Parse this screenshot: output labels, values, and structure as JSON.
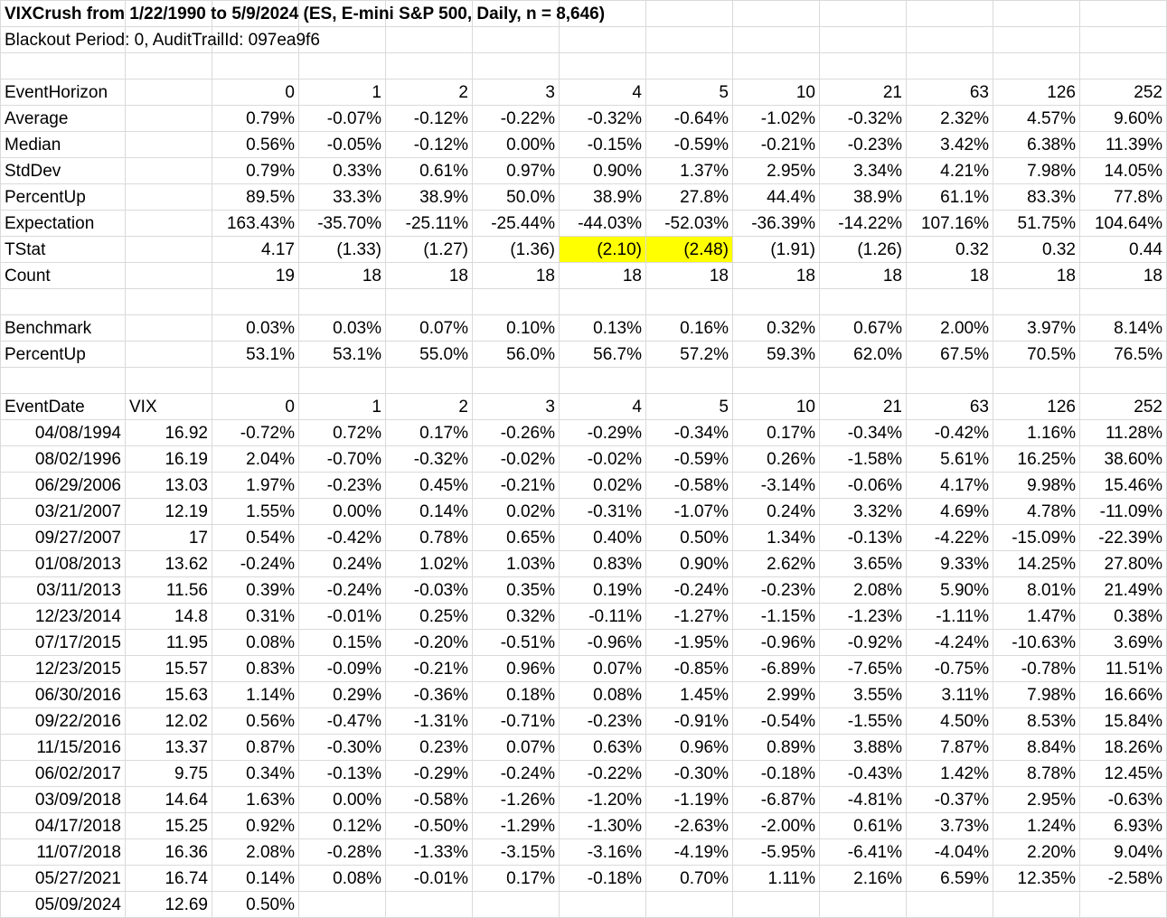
{
  "title": "VIXCrush from 1/22/1990 to 5/9/2024 (ES, E-mini S&P 500, Daily, n = 8,646)",
  "subtitle": "Blackout Period: 0, AuditTrailId: 097ea9f6",
  "colors": {
    "negative_text": "#ff0000",
    "highlight": "#ffff00",
    "gridline": "#dadada"
  },
  "horizons": [
    "0",
    "1",
    "2",
    "3",
    "4",
    "5",
    "10",
    "21",
    "63",
    "126",
    "252"
  ],
  "summary": {
    "header_label": "EventHorizon",
    "rows": [
      {
        "label": "Average",
        "values": [
          "0.79%",
          "-0.07%",
          "-0.12%",
          "-0.22%",
          "-0.32%",
          "-0.64%",
          "-1.02%",
          "-0.32%",
          "2.32%",
          "4.57%",
          "9.60%"
        ],
        "red": [
          false,
          true,
          true,
          true,
          true,
          true,
          true,
          true,
          false,
          false,
          false
        ]
      },
      {
        "label": "Median",
        "values": [
          "0.56%",
          "-0.05%",
          "-0.12%",
          "0.00%",
          "-0.15%",
          "-0.59%",
          "-0.21%",
          "-0.23%",
          "3.42%",
          "6.38%",
          "11.39%"
        ],
        "red": [
          false,
          true,
          true,
          true,
          true,
          true,
          true,
          true,
          false,
          false,
          false
        ]
      },
      {
        "label": "StdDev",
        "values": [
          "0.79%",
          "0.33%",
          "0.61%",
          "0.97%",
          "0.90%",
          "1.37%",
          "2.95%",
          "3.34%",
          "4.21%",
          "7.98%",
          "14.05%"
        ]
      },
      {
        "label": "PercentUp",
        "values": [
          "89.5%",
          "33.3%",
          "38.9%",
          "50.0%",
          "38.9%",
          "27.8%",
          "44.4%",
          "38.9%",
          "61.1%",
          "83.3%",
          "77.8%"
        ]
      },
      {
        "label": "Expectation",
        "values": [
          "163.43%",
          "-35.70%",
          "-25.11%",
          "-25.44%",
          "-44.03%",
          "-52.03%",
          "-36.39%",
          "-14.22%",
          "107.16%",
          "51.75%",
          "104.64%"
        ]
      },
      {
        "label": "TStat",
        "values": [
          "4.17",
          "(1.33)",
          "(1.27)",
          "(1.36)",
          "(2.10)",
          "(2.48)",
          "(1.91)",
          "(1.26)",
          "0.32",
          "0.32",
          "0.44"
        ],
        "highlight": [
          false,
          false,
          false,
          false,
          true,
          true,
          false,
          false,
          false,
          false,
          false
        ]
      },
      {
        "label": "Count",
        "values": [
          "19",
          "18",
          "18",
          "18",
          "18",
          "18",
          "18",
          "18",
          "18",
          "18",
          "18"
        ]
      }
    ]
  },
  "benchmark": {
    "rows": [
      {
        "label": "Benchmark",
        "values": [
          "0.03%",
          "0.03%",
          "0.07%",
          "0.10%",
          "0.13%",
          "0.16%",
          "0.32%",
          "0.67%",
          "2.00%",
          "3.97%",
          "8.14%"
        ]
      },
      {
        "label": "PercentUp",
        "values": [
          "53.1%",
          "53.1%",
          "55.0%",
          "56.0%",
          "56.7%",
          "57.2%",
          "59.3%",
          "62.0%",
          "67.5%",
          "70.5%",
          "76.5%"
        ]
      }
    ]
  },
  "events": {
    "header": {
      "date_label": "EventDate",
      "vix_label": "VIX"
    },
    "rows": [
      {
        "date": "04/08/1994",
        "vix": "16.92",
        "values": [
          "-0.72%",
          "0.72%",
          "0.17%",
          "-0.26%",
          "-0.29%",
          "-0.34%",
          "0.17%",
          "-0.34%",
          "-0.42%",
          "1.16%",
          "11.28%"
        ]
      },
      {
        "date": "08/02/1996",
        "vix": "16.19",
        "values": [
          "2.04%",
          "-0.70%",
          "-0.32%",
          "-0.02%",
          "-0.02%",
          "-0.59%",
          "0.26%",
          "-1.58%",
          "5.61%",
          "16.25%",
          "38.60%"
        ]
      },
      {
        "date": "06/29/2006",
        "vix": "13.03",
        "values": [
          "1.97%",
          "-0.23%",
          "0.45%",
          "-0.21%",
          "0.02%",
          "-0.58%",
          "-3.14%",
          "-0.06%",
          "4.17%",
          "9.98%",
          "15.46%"
        ]
      },
      {
        "date": "03/21/2007",
        "vix": "12.19",
        "values": [
          "1.55%",
          "0.00%",
          "0.14%",
          "0.02%",
          "-0.31%",
          "-1.07%",
          "0.24%",
          "3.32%",
          "4.69%",
          "4.78%",
          "-11.09%"
        ]
      },
      {
        "date": "09/27/2007",
        "vix": "17",
        "values": [
          "0.54%",
          "-0.42%",
          "0.78%",
          "0.65%",
          "0.40%",
          "0.50%",
          "1.34%",
          "-0.13%",
          "-4.22%",
          "-15.09%",
          "-22.39%"
        ]
      },
      {
        "date": "01/08/2013",
        "vix": "13.62",
        "values": [
          "-0.24%",
          "0.24%",
          "1.02%",
          "1.03%",
          "0.83%",
          "0.90%",
          "2.62%",
          "3.65%",
          "9.33%",
          "14.25%",
          "27.80%"
        ]
      },
      {
        "date": "03/11/2013",
        "vix": "11.56",
        "values": [
          "0.39%",
          "-0.24%",
          "-0.03%",
          "0.35%",
          "0.19%",
          "-0.24%",
          "-0.23%",
          "2.08%",
          "5.90%",
          "8.01%",
          "21.49%"
        ]
      },
      {
        "date": "12/23/2014",
        "vix": "14.8",
        "values": [
          "0.31%",
          "-0.01%",
          "0.25%",
          "0.32%",
          "-0.11%",
          "-1.27%",
          "-1.15%",
          "-1.23%",
          "-1.11%",
          "1.47%",
          "0.38%"
        ]
      },
      {
        "date": "07/17/2015",
        "vix": "11.95",
        "values": [
          "0.08%",
          "0.15%",
          "-0.20%",
          "-0.51%",
          "-0.96%",
          "-1.95%",
          "-0.96%",
          "-0.92%",
          "-4.24%",
          "-10.63%",
          "3.69%"
        ]
      },
      {
        "date": "12/23/2015",
        "vix": "15.57",
        "values": [
          "0.83%",
          "-0.09%",
          "-0.21%",
          "0.96%",
          "0.07%",
          "-0.85%",
          "-6.89%",
          "-7.65%",
          "-0.75%",
          "-0.78%",
          "11.51%"
        ]
      },
      {
        "date": "06/30/2016",
        "vix": "15.63",
        "values": [
          "1.14%",
          "0.29%",
          "-0.36%",
          "0.18%",
          "0.08%",
          "1.45%",
          "2.99%",
          "3.55%",
          "3.11%",
          "7.98%",
          "16.66%"
        ]
      },
      {
        "date": "09/22/2016",
        "vix": "12.02",
        "values": [
          "0.56%",
          "-0.47%",
          "-1.31%",
          "-0.71%",
          "-0.23%",
          "-0.91%",
          "-0.54%",
          "-1.55%",
          "4.50%",
          "8.53%",
          "15.84%"
        ]
      },
      {
        "date": "11/15/2016",
        "vix": "13.37",
        "values": [
          "0.87%",
          "-0.30%",
          "0.23%",
          "0.07%",
          "0.63%",
          "0.96%",
          "0.89%",
          "3.88%",
          "7.87%",
          "8.84%",
          "18.26%"
        ]
      },
      {
        "date": "06/02/2017",
        "vix": "9.75",
        "values": [
          "0.34%",
          "-0.13%",
          "-0.29%",
          "-0.24%",
          "-0.22%",
          "-0.30%",
          "-0.18%",
          "-0.43%",
          "1.42%",
          "8.78%",
          "12.45%"
        ]
      },
      {
        "date": "03/09/2018",
        "vix": "14.64",
        "values": [
          "1.63%",
          "0.00%",
          "-0.58%",
          "-1.26%",
          "-1.20%",
          "-1.19%",
          "-6.87%",
          "-4.81%",
          "-0.37%",
          "2.95%",
          "-0.63%"
        ]
      },
      {
        "date": "04/17/2018",
        "vix": "15.25",
        "values": [
          "0.92%",
          "0.12%",
          "-0.50%",
          "-1.29%",
          "-1.30%",
          "-2.63%",
          "-2.00%",
          "0.61%",
          "3.73%",
          "1.24%",
          "6.93%"
        ]
      },
      {
        "date": "11/07/2018",
        "vix": "16.36",
        "values": [
          "2.08%",
          "-0.28%",
          "-1.33%",
          "-3.15%",
          "-3.16%",
          "-4.19%",
          "-5.95%",
          "-6.41%",
          "-4.04%",
          "2.20%",
          "9.04%"
        ]
      },
      {
        "date": "05/27/2021",
        "vix": "16.74",
        "values": [
          "0.14%",
          "0.08%",
          "-0.01%",
          "0.17%",
          "-0.18%",
          "0.70%",
          "1.11%",
          "2.16%",
          "6.59%",
          "12.35%",
          "-2.58%"
        ]
      },
      {
        "date": "05/09/2024",
        "vix": "12.69",
        "values": [
          "0.50%",
          "",
          "",
          "",
          "",
          "",
          "",
          "",
          "",
          "",
          ""
        ]
      }
    ]
  }
}
